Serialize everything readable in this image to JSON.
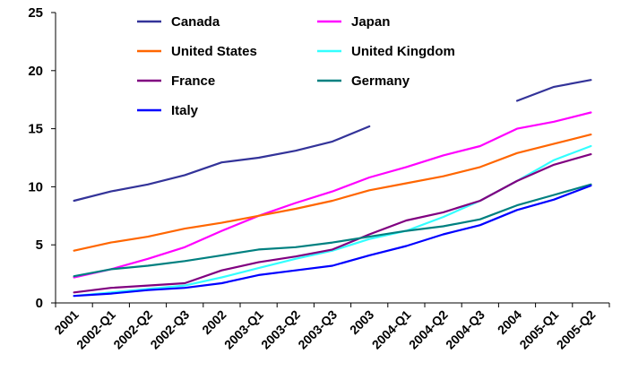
{
  "chart_data": {
    "type": "line",
    "title": "",
    "xlabel": "",
    "ylabel": "",
    "ylim": [
      0,
      25
    ],
    "y_ticks": [
      "0",
      "5",
      "10",
      "15",
      "20",
      "25"
    ],
    "grid": false,
    "legend_position": "top-left (inside plot, two columns)",
    "categories": [
      "2001",
      "2002-Q1",
      "2002-Q2",
      "2002-Q3",
      "2002",
      "2003-Q1",
      "2003-Q2",
      "2003-Q3",
      "2003",
      "2004-Q1",
      "2004-Q2",
      "2004-Q3",
      "2004",
      "2005-Q1",
      "2005-Q2"
    ],
    "series": [
      {
        "name": "Canada",
        "color": "#333399",
        "values": [
          8.8,
          9.6,
          10.2,
          11.0,
          12.1,
          12.5,
          13.1,
          13.9,
          15.2,
          null,
          null,
          null,
          17.4,
          18.6,
          19.2
        ]
      },
      {
        "name": "Japan",
        "color": "#ff00ff",
        "values": [
          2.2,
          2.9,
          3.8,
          4.8,
          6.2,
          7.5,
          8.6,
          9.6,
          10.8,
          11.7,
          12.7,
          13.5,
          15.0,
          15.6,
          16.4
        ]
      },
      {
        "name": "United States",
        "color": "#ff6600",
        "values": [
          4.5,
          5.2,
          5.7,
          6.4,
          6.9,
          7.5,
          8.1,
          8.8,
          9.7,
          10.3,
          10.9,
          11.7,
          12.9,
          13.7,
          14.5
        ]
      },
      {
        "name": "United Kingdom",
        "color": "#33ffff",
        "values": [
          0.6,
          0.9,
          1.2,
          1.5,
          2.2,
          3.0,
          3.8,
          4.5,
          5.5,
          6.2,
          7.4,
          8.8,
          10.5,
          12.3,
          13.5
        ]
      },
      {
        "name": "France",
        "color": "#800080",
        "values": [
          0.9,
          1.3,
          1.5,
          1.7,
          2.8,
          3.5,
          4.0,
          4.6,
          5.9,
          7.1,
          7.8,
          8.8,
          10.5,
          11.9,
          12.8
        ]
      },
      {
        "name": "Germany",
        "color": "#008080",
        "values": [
          2.3,
          2.9,
          3.2,
          3.6,
          4.1,
          4.6,
          4.8,
          5.2,
          5.7,
          6.2,
          6.6,
          7.2,
          8.4,
          9.3,
          10.2
        ]
      },
      {
        "name": "Italy",
        "color": "#0000ff",
        "values": [
          0.6,
          0.8,
          1.1,
          1.3,
          1.7,
          2.4,
          2.8,
          3.2,
          4.1,
          4.9,
          5.9,
          6.7,
          8.0,
          8.9,
          10.1
        ]
      }
    ]
  }
}
